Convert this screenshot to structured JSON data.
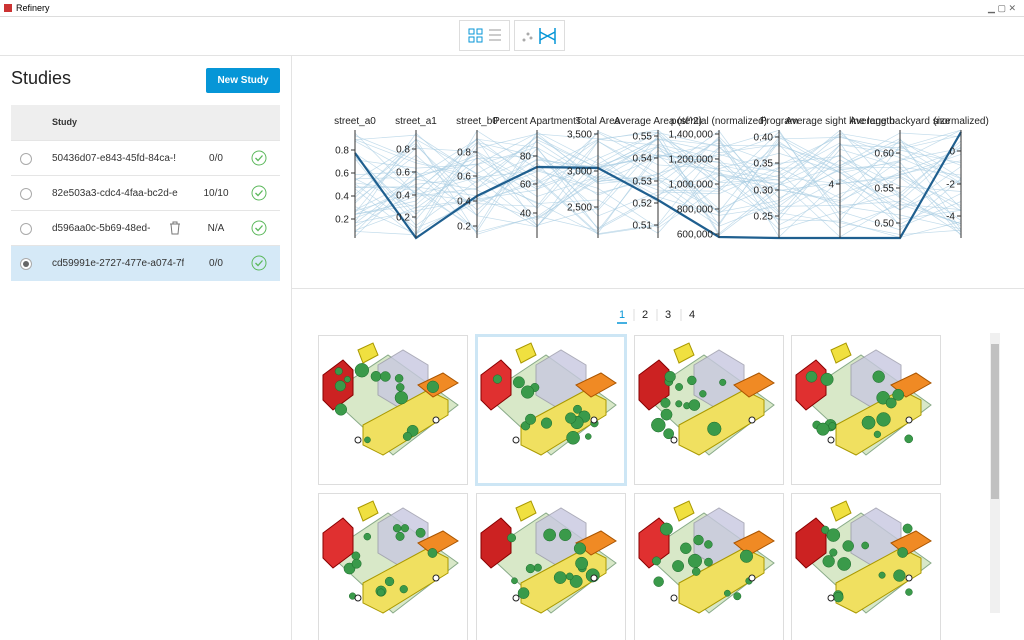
{
  "window": {
    "title": "Refinery"
  },
  "sidebar": {
    "title": "Studies",
    "new_study": "New Study",
    "table": {
      "header": "Study",
      "rows": [
        [
          "50436d07-e843-45fd-84ca-!",
          "0/0"
        ],
        [
          "82e503a3-cdc4-4faa-bc2d-e",
          "10/10"
        ],
        [
          "d596aa0c-5b69-48ed-",
          "N/A"
        ],
        [
          "cd59991e-2727-477e-a074-7f",
          "0/0"
        ]
      ]
    }
  },
  "parallel_coordinates": {
    "axes": [
      {
        "name": "street_a0",
        "ticks": [
          "0.8",
          "0.6",
          "0.4",
          "0.2"
        ]
      },
      {
        "name": "street_a1",
        "ticks": [
          "0.8",
          "0.6",
          "0.4",
          "0.2"
        ]
      },
      {
        "name": "street_b0",
        "ticks": [
          "0.8",
          "0.6",
          "0.4",
          "0.2"
        ]
      },
      {
        "name": "Percent Apartments",
        "ticks": [
          "80",
          "60",
          "40"
        ]
      },
      {
        "name": "Total Area",
        "ticks": [
          "3,500",
          "3,000",
          "2,500"
        ]
      },
      {
        "name": "Average Area (sf^2)",
        "ticks": [
          "0.55",
          "0.54",
          "0.53",
          "0.52",
          "0.51"
        ]
      },
      {
        "name": "potential (normalized)",
        "ticks": [
          "1,400,000",
          "1,200,000",
          "1,000,000",
          "800,000",
          "600,000"
        ]
      },
      {
        "name": "Program",
        "ticks": [
          "0.40",
          "0.35",
          "0.30",
          "0.25"
        ]
      },
      {
        "name": "Average sight line length",
        "ticks": [
          "4"
        ]
      },
      {
        "name": "Average backyard size",
        "ticks": [
          "0.60",
          "0.55",
          "0.50"
        ]
      },
      {
        "name": "(normalized)",
        "ticks": [
          "0",
          "-2",
          "-4"
        ]
      }
    ]
  },
  "pagination": [
    "1",
    "2",
    "3",
    "4"
  ]
}
